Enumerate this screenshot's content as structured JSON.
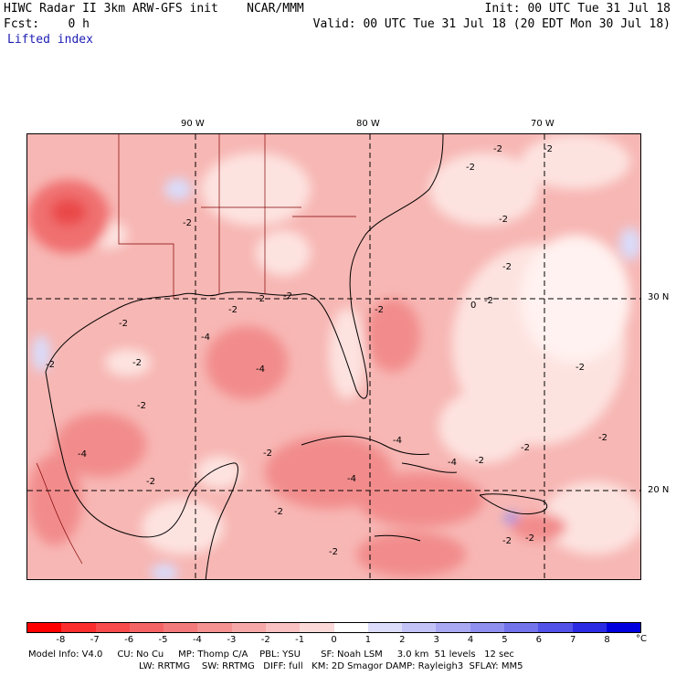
{
  "header": {
    "title": "HIWC Radar II 3km ARW-GFS init",
    "source": "NCAR/MMM",
    "init": "Init: 00 UTC Tue 31 Jul 18",
    "fcst_label": "Fcst:",
    "fcst_value": "0 h",
    "valid": "Valid: 00 UTC Tue 31 Jul 18 (20 EDT Mon 30 Jul 18)",
    "field": "Lifted index"
  },
  "map": {
    "lon_labels": [
      "90 W",
      "80 W",
      "70 W"
    ],
    "lat_labels": [
      "30 N",
      "20 N"
    ],
    "contour_labels": [
      "-2",
      "-2",
      "-2",
      "-2",
      "-2",
      "-2",
      "-2",
      "-4",
      "-4",
      "-4",
      "-2",
      "-2",
      "-2",
      "-2",
      "-4",
      "-4",
      "-2",
      "-2",
      "-2",
      "-2",
      "-2",
      "0",
      "-2",
      "-2",
      "-2",
      "-2",
      "-2",
      "-2",
      "-4",
      "-2",
      "-2",
      "-2"
    ],
    "colors": {
      "ocean_fill": "#f7b7b4",
      "deep_red": "#f07070",
      "light": "#fde3e0",
      "near_zero": "#fff2f0",
      "positive": "#d9dcfb"
    }
  },
  "colorbar": {
    "ticks": [
      "-8",
      "-7",
      "-6",
      "-5",
      "-4",
      "-3",
      "-2",
      "-1",
      "0",
      "1",
      "2",
      "3",
      "4",
      "5",
      "6",
      "7",
      "8"
    ],
    "unit": "°C",
    "colors": [
      "#ff0000",
      "#fb2d2d",
      "#f84b4b",
      "#f56464",
      "#f27a7a",
      "#f49191",
      "#f6a8a8",
      "#f9c1c1",
      "#fcd9d9",
      "#ffffff",
      "#dcdcfb",
      "#c3c3f7",
      "#a9a9f3",
      "#8f8ff0",
      "#7373ec",
      "#5252e8",
      "#2b2be3",
      "#0000de"
    ]
  },
  "model_info": {
    "line1": "Model Info: V4.0     CU: No Cu     MP: Thomp C/A    PBL: YSU       SF: Noah LSM     3.0 km  51 levels   12 sec",
    "line2": "LW: RRTMG    SW: RRTMG   DIFF: full   KM: 2D Smagor DAMP: Rayleigh3  SFLAY: MM5"
  }
}
